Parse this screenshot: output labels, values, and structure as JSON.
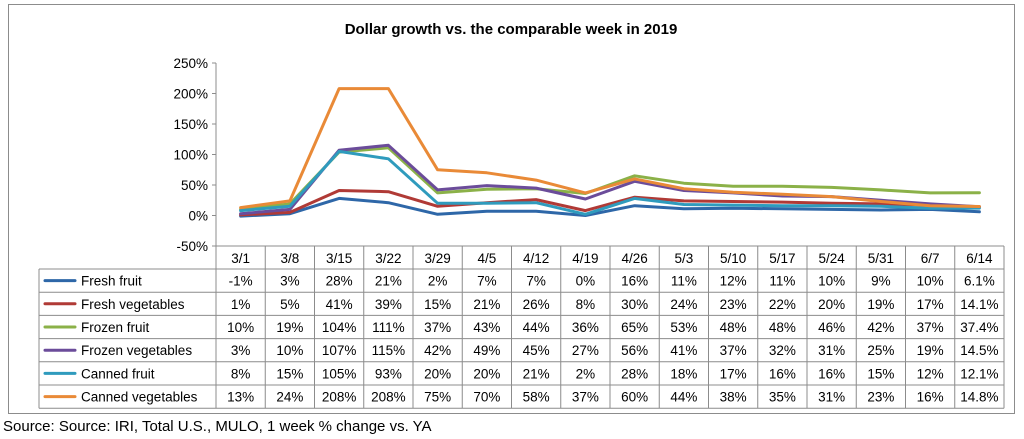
{
  "chart_data": {
    "type": "line",
    "title": "Dollar growth vs. the comparable week in 2019",
    "categories": [
      "3/1",
      "3/8",
      "3/15",
      "3/22",
      "3/29",
      "4/5",
      "4/12",
      "4/19",
      "4/26",
      "5/3",
      "5/10",
      "5/17",
      "5/24",
      "5/31",
      "6/7",
      "6/14"
    ],
    "ylim": [
      -50,
      250
    ],
    "yticks": [
      -50,
      0,
      50,
      100,
      150,
      200,
      250
    ],
    "ytick_labels": [
      "-50%",
      "0%",
      "50%",
      "100%",
      "150%",
      "200%",
      "250%"
    ],
    "legend_placement": "data-table",
    "series": [
      {
        "name": "Fresh fruit",
        "color": "#2e67a8",
        "values": [
          -1,
          3,
          28,
          21,
          2,
          7,
          7,
          0,
          16,
          11,
          12,
          11,
          10,
          9,
          10,
          6.1
        ],
        "labels": [
          "-1%",
          "3%",
          "28%",
          "21%",
          "2%",
          "7%",
          "7%",
          "0%",
          "16%",
          "11%",
          "12%",
          "11%",
          "10%",
          "9%",
          "10%",
          "6.1%"
        ]
      },
      {
        "name": "Fresh vegetables",
        "color": "#b03a36",
        "values": [
          1,
          5,
          41,
          39,
          15,
          21,
          26,
          8,
          30,
          24,
          23,
          22,
          20,
          19,
          17,
          14.1
        ],
        "labels": [
          "1%",
          "5%",
          "41%",
          "39%",
          "15%",
          "21%",
          "26%",
          "8%",
          "30%",
          "24%",
          "23%",
          "22%",
          "20%",
          "19%",
          "17%",
          "14.1%"
        ]
      },
      {
        "name": "Frozen fruit",
        "color": "#8bb148",
        "values": [
          10,
          19,
          104,
          111,
          37,
          43,
          44,
          36,
          65,
          53,
          48,
          48,
          46,
          42,
          37,
          37.4
        ],
        "labels": [
          "10%",
          "19%",
          "104%",
          "111%",
          "37%",
          "43%",
          "44%",
          "36%",
          "65%",
          "53%",
          "48%",
          "48%",
          "46%",
          "42%",
          "37%",
          "37.4%"
        ]
      },
      {
        "name": "Frozen vegetables",
        "color": "#6b4c9a",
        "values": [
          3,
          10,
          107,
          115,
          42,
          49,
          45,
          27,
          56,
          41,
          37,
          32,
          31,
          25,
          19,
          14.5
        ],
        "labels": [
          "3%",
          "10%",
          "107%",
          "115%",
          "42%",
          "49%",
          "45%",
          "27%",
          "56%",
          "41%",
          "37%",
          "32%",
          "31%",
          "25%",
          "19%",
          "14.5%"
        ]
      },
      {
        "name": "Canned fruit",
        "color": "#2f9bbd",
        "values": [
          8,
          15,
          105,
          93,
          20,
          20,
          21,
          2,
          28,
          18,
          17,
          16,
          16,
          15,
          12,
          12.1
        ],
        "labels": [
          "8%",
          "15%",
          "105%",
          "93%",
          "20%",
          "20%",
          "21%",
          "2%",
          "28%",
          "18%",
          "17%",
          "16%",
          "16%",
          "15%",
          "12%",
          "12.1%"
        ]
      },
      {
        "name": "Canned vegetables",
        "color": "#e98a37",
        "values": [
          13,
          24,
          208,
          208,
          75,
          70,
          58,
          37,
          60,
          44,
          38,
          35,
          31,
          23,
          16,
          14.8
        ],
        "labels": [
          "13%",
          "24%",
          "208%",
          "208%",
          "75%",
          "70%",
          "58%",
          "37%",
          "60%",
          "44%",
          "38%",
          "35%",
          "31%",
          "23%",
          "16%",
          "14.8%"
        ]
      }
    ]
  },
  "source": "Source: Source: IRI, Total U.S., MULO, 1 week % change vs. YA"
}
